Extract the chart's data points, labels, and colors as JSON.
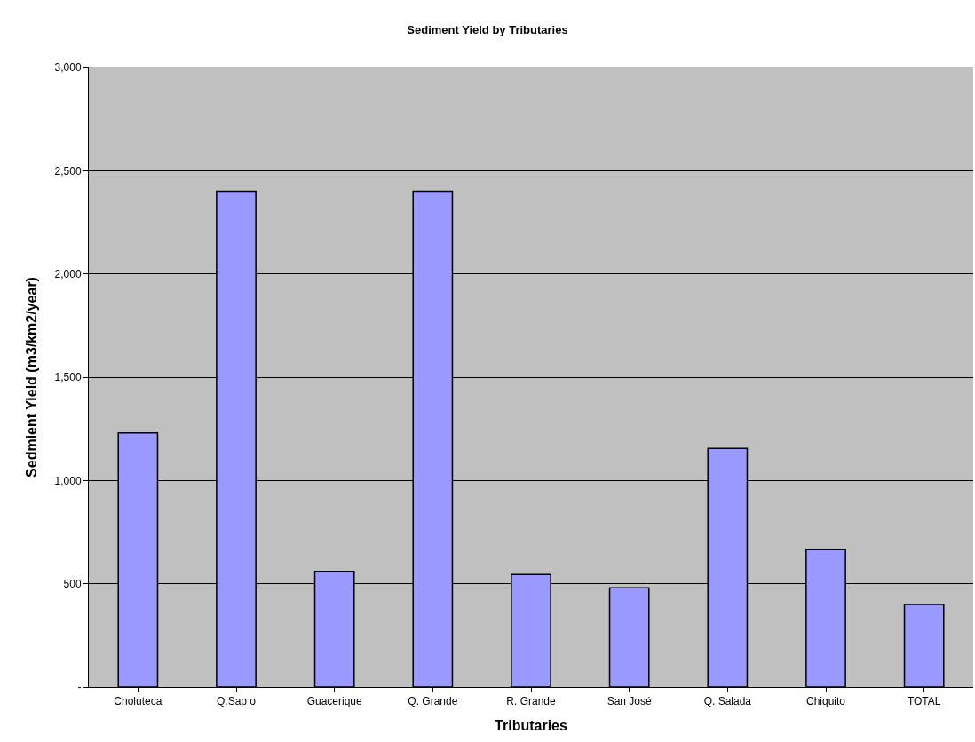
{
  "chart_data": {
    "type": "bar",
    "title": "Sediment Yield by Tributaries",
    "xlabel": "Tributaries",
    "ylabel": "Sedmient Yield (m3/km2/year)",
    "categories": [
      "Choluteca",
      "Q.Sap o",
      "Guacerique",
      "Q. Grande",
      "R. Grande",
      "San José",
      "Q. Salada",
      "Chiquito",
      "TOTAL"
    ],
    "values": [
      1230,
      2400,
      560,
      2400,
      545,
      480,
      1155,
      665,
      400
    ],
    "color": "#9999ff",
    "ylim": [
      0,
      3000
    ],
    "yticks": [
      {
        "value": 0,
        "label": "-"
      },
      {
        "value": 500,
        "label": "500"
      },
      {
        "value": 1000,
        "label": "1,000"
      },
      {
        "value": 1500,
        "label": "1,500"
      },
      {
        "value": 2000,
        "label": "2,000"
      },
      {
        "value": 2500,
        "label": "2,500"
      },
      {
        "value": 3000,
        "label": "3,000"
      }
    ],
    "grid": "y"
  }
}
